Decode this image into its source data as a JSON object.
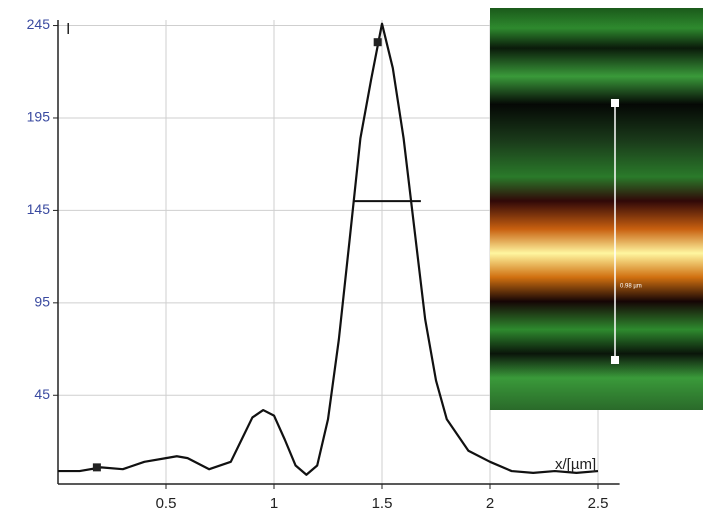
{
  "chart_data": {
    "type": "line",
    "ylabel": "I",
    "xlabel": "x/[µm]",
    "x": [
      0,
      0.1,
      0.2,
      0.3,
      0.4,
      0.5,
      0.55,
      0.6,
      0.7,
      0.8,
      0.85,
      0.9,
      0.95,
      1.0,
      1.05,
      1.1,
      1.15,
      1.2,
      1.25,
      1.3,
      1.35,
      1.4,
      1.45,
      1.5,
      1.55,
      1.6,
      1.65,
      1.7,
      1.75,
      1.8,
      1.9,
      2.0,
      2.1,
      2.2,
      2.3,
      2.4,
      2.5
    ],
    "series": [
      {
        "color": "#111111",
        "values": [
          4,
          4,
          6,
          5,
          9,
          11,
          12,
          11,
          5,
          9,
          21,
          33,
          37,
          34,
          21,
          7,
          2,
          7,
          32,
          75,
          129,
          184,
          216,
          246,
          222,
          184,
          135,
          86,
          53,
          32,
          15,
          9,
          4,
          3,
          4,
          3,
          4
        ]
      }
    ],
    "xlim": [
      0,
      2.6
    ],
    "ylim": [
      -3,
      248
    ],
    "xticks": [
      0.5,
      1,
      1.5,
      2,
      2.5
    ],
    "yticks": [
      45,
      95,
      145,
      195,
      245
    ],
    "grid": true,
    "fwhm": {
      "x": [
        1.37,
        1.68
      ],
      "y": 150
    },
    "markers": [
      {
        "x": 0.18,
        "y": 6
      },
      {
        "x": 1.48,
        "y": 236
      }
    ],
    "inset_label": "0.98 µm"
  }
}
